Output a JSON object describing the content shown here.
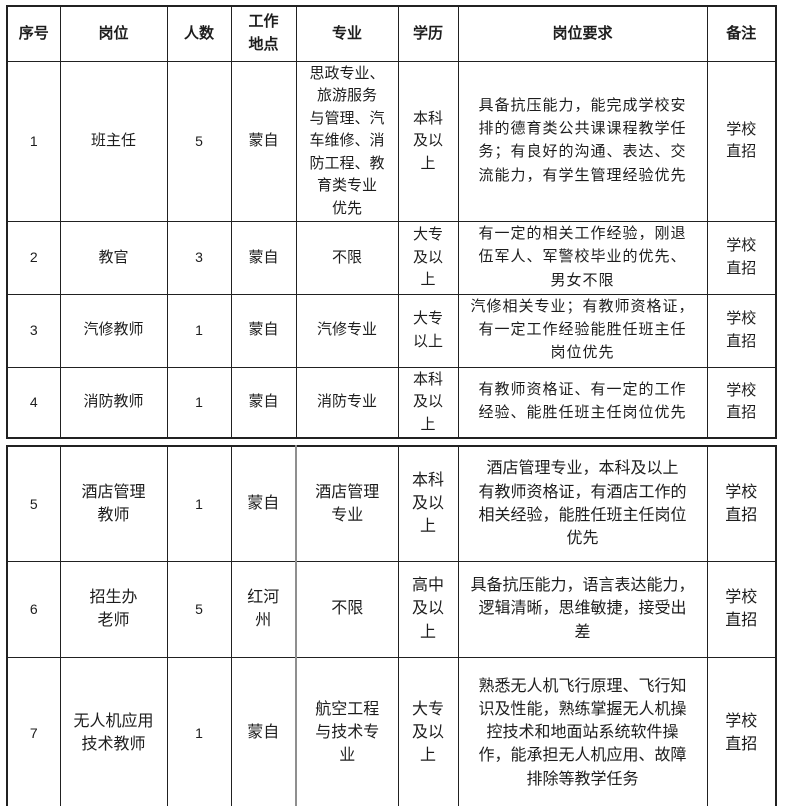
{
  "table": {
    "headers": {
      "no": "序号",
      "position": "岗位",
      "count": "人数",
      "location": "工作\n地点",
      "major": "专业",
      "education": "学历",
      "requirements": "岗位要求",
      "note": "备注"
    },
    "rows": [
      {
        "no": "1",
        "position": "班主任",
        "count": "5",
        "location": "蒙自",
        "major": "思政专业、\n旅游服务\n与管理、汽\n车维修、消\n防工程、教\n育类专业\n优先",
        "education": "本科\n及以\n上",
        "requirements": "具备抗压能力，能完成学校安\n排的德育类公共课课程教学任\n务；有良好的沟通、表达、交\n流能力，有学生管理经验优先",
        "note": "学校\n直招"
      },
      {
        "no": "2",
        "position": "教官",
        "count": "3",
        "location": "蒙自",
        "major": "不限",
        "education": "大专\n及以\n上",
        "requirements": "有一定的相关工作经验，刚退\n伍军人、军警校毕业的优先、\n男女不限",
        "note": "学校\n直招"
      },
      {
        "no": "3",
        "position": "汽修教师",
        "count": "1",
        "location": "蒙自",
        "major": "汽修专业",
        "education": "大专\n以上",
        "requirements": "汽修相关专业；有教师资格证，\n有一定工作经验能胜任班主任\n岗位优先",
        "note": "学校\n直招"
      },
      {
        "no": "4",
        "position": "消防教师",
        "count": "1",
        "location": "蒙自",
        "major": "消防专业",
        "education": "本科\n及以\n上",
        "requirements": "有教师资格证、有一定的工作\n经验、能胜任班主任岗位优先",
        "note": "学校\n直招"
      },
      {
        "no": "5",
        "position": "酒店管理\n教师",
        "count": "1",
        "location": "蒙自",
        "major": "酒店管理\n专业",
        "education": "本科\n及以\n上",
        "requirements": "酒店管理专业，本科及以上\n有教师资格证，有酒店工作的\n相关经验，能胜任班主任岗位\n优先",
        "note": "学校\n直招"
      },
      {
        "no": "6",
        "position": "招生办\n老师",
        "count": "5",
        "location": "红河\n州",
        "major": "不限",
        "education": "高中\n及以\n上",
        "requirements": "具备抗压能力，语言表达能力，\n逻辑清晰，思维敏捷，接受出\n差",
        "note": "学校\n直招"
      },
      {
        "no": "7",
        "position": "无人机应用\n技术教师",
        "count": "1",
        "location": "蒙自",
        "major": "航空工程\n与技术专\n业",
        "education": "大专\n及以\n上",
        "requirements": "熟悉无人机飞行原理、飞行知\n识及性能，熟练掌握无人机操\n控技术和地面站系统软件操\n作，能承担无人机应用、故障\n排除等教学任务",
        "note": "学校\n直招"
      }
    ]
  }
}
